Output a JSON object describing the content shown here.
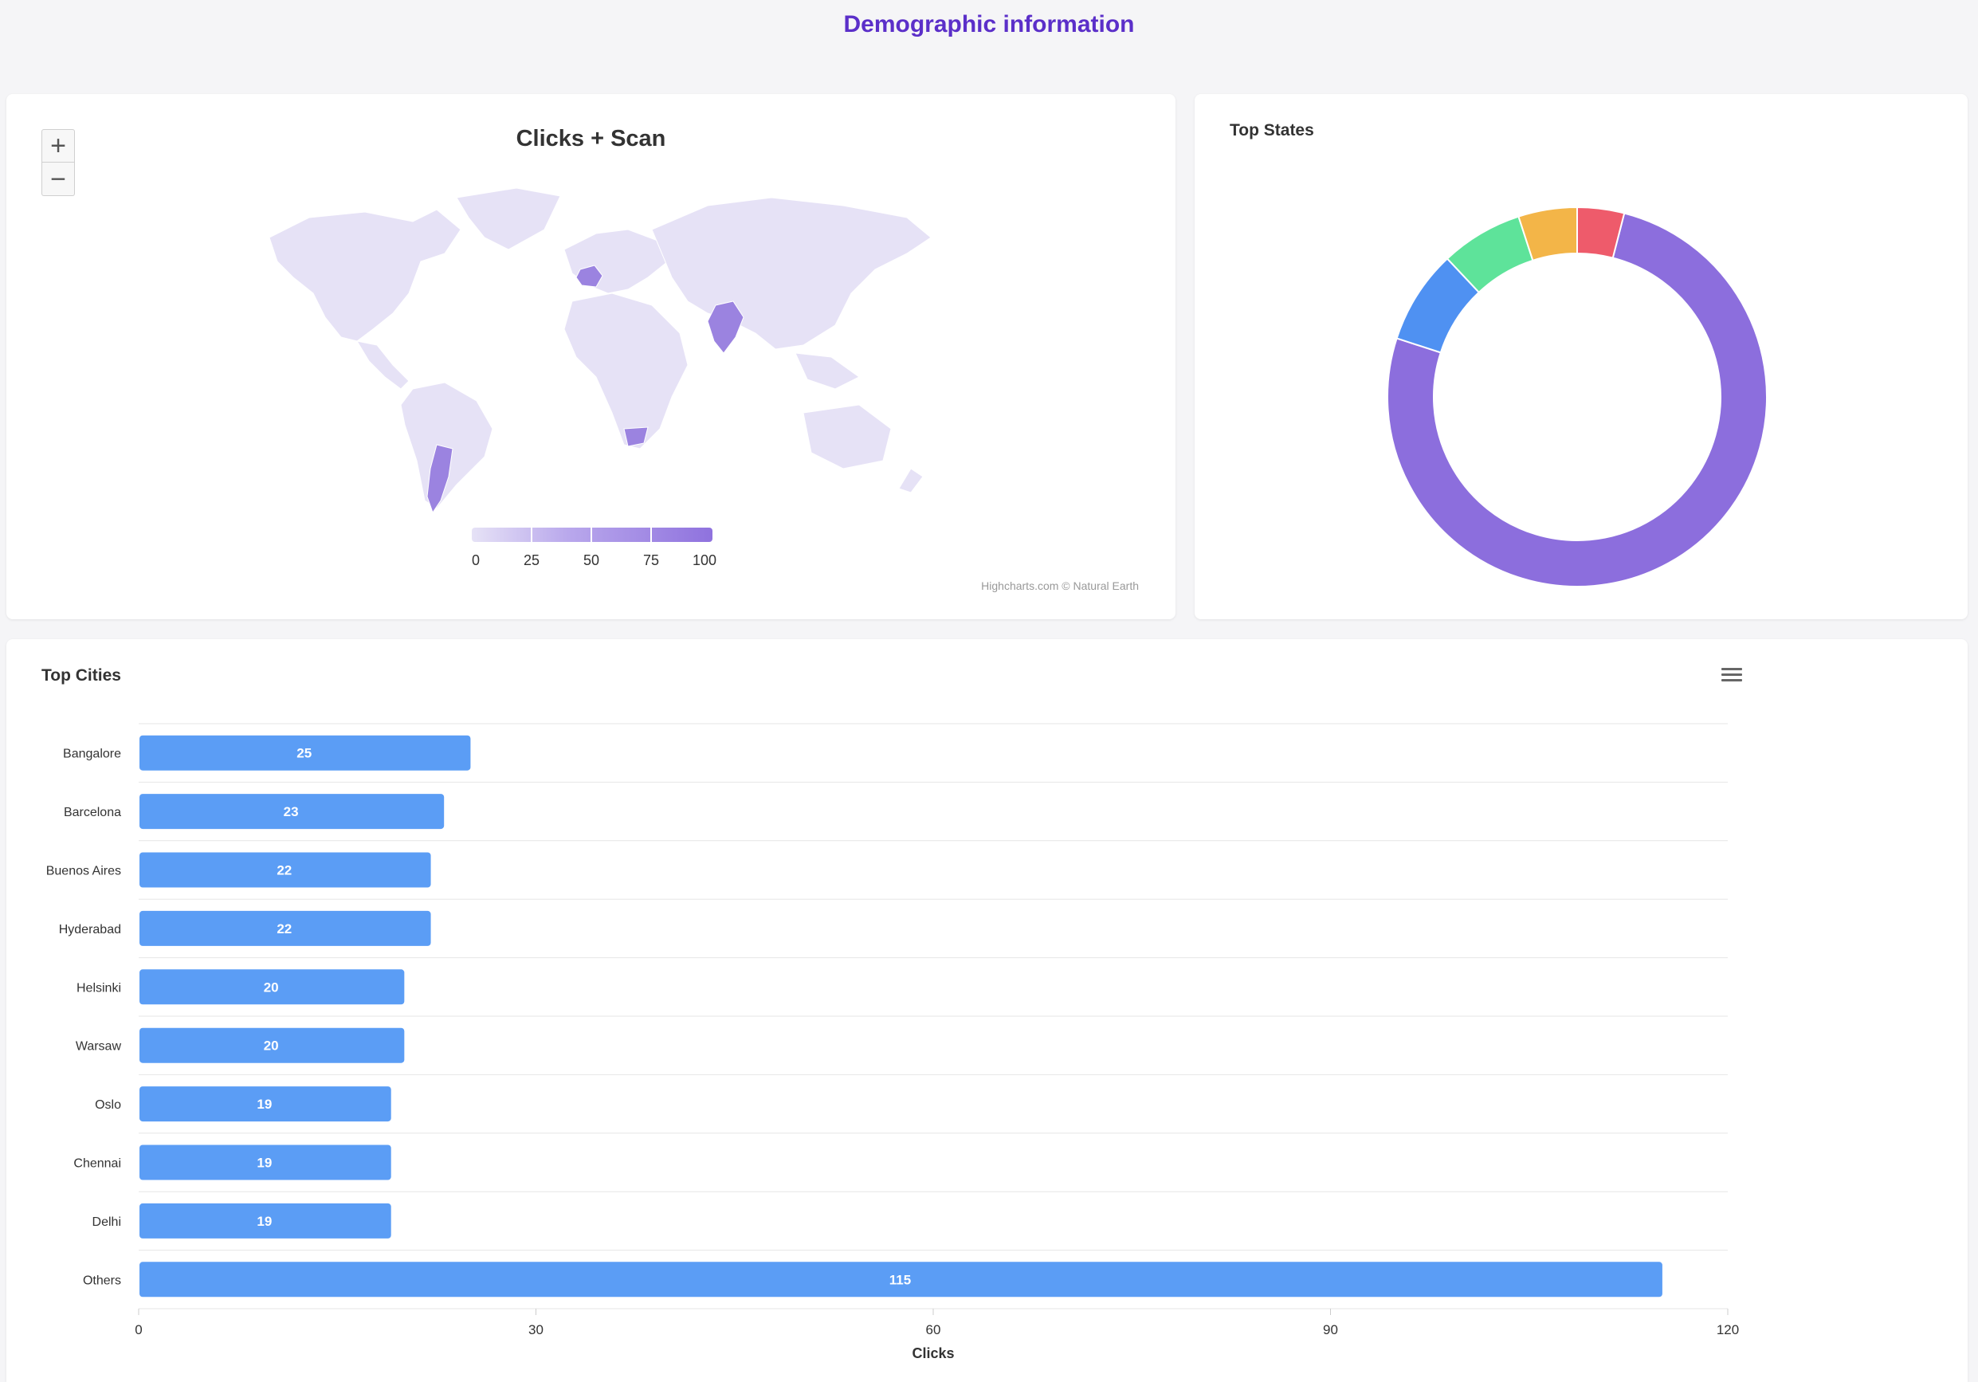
{
  "page": {
    "title": "Demographic information"
  },
  "map": {
    "title": "Clicks + Scan",
    "zoom_in": "+",
    "zoom_out": "−",
    "legend_labels": [
      "0",
      "25",
      "50",
      "75",
      "100"
    ],
    "credits": "Highcharts.com © Natural Earth",
    "colors": {
      "base": "#e6e2f6",
      "highlight": "#9b83e0"
    },
    "highlighted_countries": [
      "France",
      "India",
      "Argentina",
      "South Africa"
    ]
  },
  "states": {
    "title": "Top States",
    "colors": [
      "#8c6edd",
      "#4f91f2",
      "#5ee39a",
      "#f3b548",
      "#ee5b6b"
    ]
  },
  "cities": {
    "title": "Top Cities",
    "menu_icon": "hamburger-menu-icon"
  },
  "chart_data": [
    {
      "type": "pie",
      "title": "Top States",
      "values": [
        76,
        8,
        7,
        5,
        4
      ],
      "colors": [
        "#8c6edd",
        "#4f91f2",
        "#5ee39a",
        "#f3b548",
        "#ee5b6b"
      ],
      "donut": true
    },
    {
      "type": "bar",
      "orientation": "horizontal",
      "title": "Top Cities",
      "categories": [
        "Bangalore",
        "Barcelona",
        "Buenos Aires",
        "Hyderabad",
        "Helsinki",
        "Warsaw",
        "Oslo",
        "Chennai",
        "Delhi",
        "Others"
      ],
      "values": [
        25,
        23,
        22,
        22,
        20,
        20,
        19,
        19,
        19,
        115
      ],
      "xlabel": "Clicks",
      "xlim": [
        0,
        120
      ],
      "ticks": [
        "0",
        "30",
        "60",
        "90",
        "120"
      ],
      "color": "#5b9df5",
      "data_labels": true
    }
  ]
}
